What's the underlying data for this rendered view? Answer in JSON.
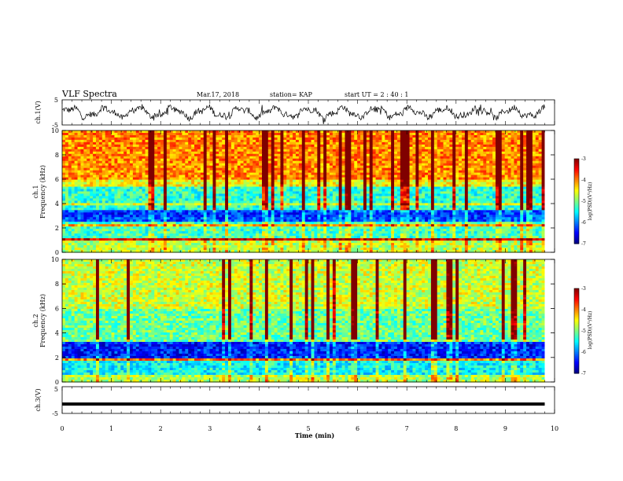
{
  "chart_data": {
    "type": "heatmap",
    "title": "VLF Spectra",
    "date": "Mar.17, 2018",
    "station": "station= KAP",
    "start_ut": "start  UT =  2 : 40 : 1",
    "xlabel": "Time  (min)",
    "xlim": [
      0,
      10
    ],
    "x_ticks": [
      "0",
      "1",
      "2",
      "3",
      "4",
      "5",
      "6",
      "7",
      "8",
      "9",
      "10"
    ],
    "panels": [
      {
        "kind": "waveform",
        "ylabel": "ch.1(V)",
        "ylim": [
          -5,
          5
        ],
        "y_ticks": [
          "5",
          "-5"
        ],
        "color": "#000000"
      },
      {
        "kind": "spectrogram",
        "ylabel_line1": "ch.1",
        "ylabel_line2": "Frequency  (kHz)",
        "ylim": [
          0,
          10
        ],
        "y_ticks": [
          "0",
          "2",
          "4",
          "6",
          "8",
          "10"
        ],
        "colorbar": {
          "label": "log(PSD)(V²/Hz)",
          "range": [
            -7,
            -3
          ],
          "ticks": [
            "-3",
            "-4",
            "-5",
            "-6",
            "-7"
          ]
        },
        "horizontal_bands": [
          {
            "freq_khz": [
              2.8,
              3.3
            ],
            "level": -6.3
          },
          {
            "freq_khz": [
              0.9,
              1.1
            ],
            "level": -3.4
          },
          {
            "freq_khz": [
              3.8,
              4.0
            ],
            "level": -4.6
          },
          {
            "freq_khz": [
              2.2,
              2.4
            ],
            "level": -4.2
          }
        ]
      },
      {
        "kind": "spectrogram",
        "ylabel_line1": "ch.2",
        "ylabel_line2": "Frequency  (kHz)",
        "ylim": [
          0,
          10
        ],
        "y_ticks": [
          "0",
          "2",
          "4",
          "6",
          "8",
          "10"
        ],
        "colorbar": {
          "label": "log(PSD)(V²/Hz)",
          "range": [
            -7,
            -3
          ],
          "ticks": [
            "-3",
            "-4",
            "-5",
            "-6",
            "-7"
          ]
        },
        "horizontal_bands": [
          {
            "freq_khz": [
              2.2,
              3.0
            ],
            "level": -6.4
          },
          {
            "freq_khz": [
              1.7,
              1.9
            ],
            "level": -4.0
          }
        ]
      },
      {
        "kind": "waveform",
        "ylabel": "ch.3(V)",
        "ylim": [
          -5,
          5
        ],
        "y_ticks": [
          "5",
          "-5"
        ],
        "constant_value": -1.5,
        "color": "#000000"
      }
    ],
    "grid": false,
    "data_end_min": 9.8
  }
}
